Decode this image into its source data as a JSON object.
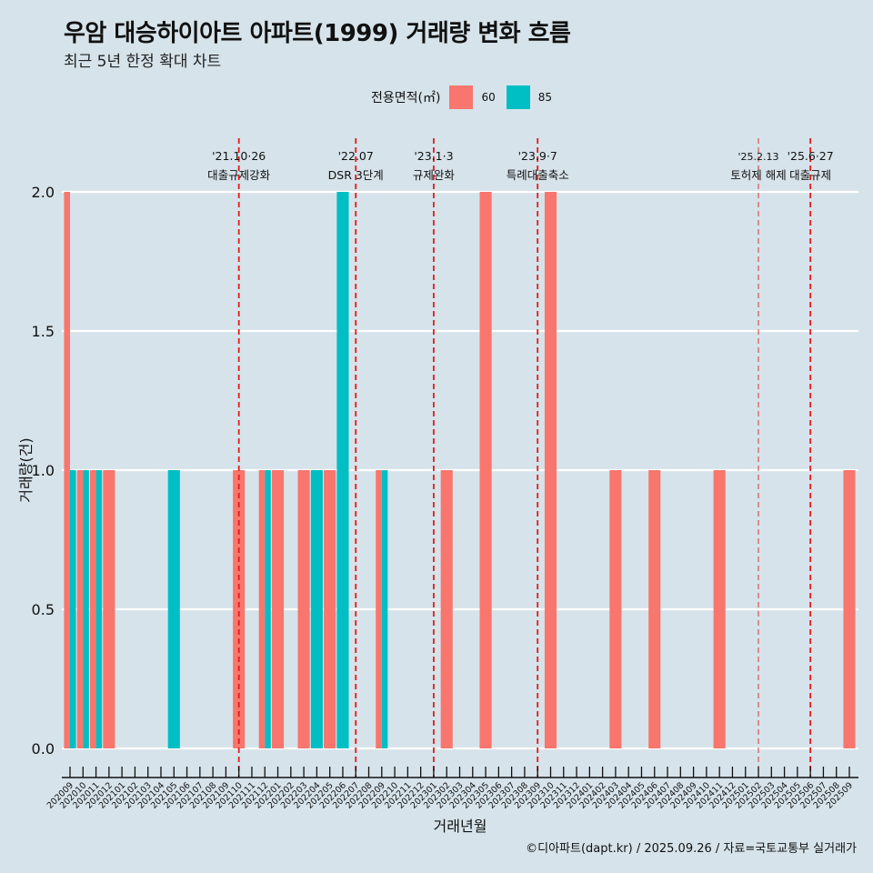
{
  "header": {
    "title": "우암 대승하이아트 아파트(1999) 거래량 변화 흐름",
    "subtitle": "최근 5년 한정 확대 차트"
  },
  "legend": {
    "title": "전용면적(㎡)",
    "items": [
      {
        "label": "60",
        "color": "#f8766d"
      },
      {
        "label": "85",
        "color": "#00bfc4"
      }
    ]
  },
  "footer": {
    "credit": "©디아파트(dapt.kr) / 2025.09.26 / 자료=국토교통부 실거래가"
  },
  "chart_data": {
    "type": "bar",
    "title": "우암 대승하이아트 아파트(1999) 거래량 변화 흐름",
    "subtitle": "최근 5년 한정 확대 차트",
    "xlabel": "거래년월",
    "ylabel": "거래량(건)",
    "ylim": [
      0,
      2
    ],
    "yticks": [
      "0.0",
      "0.5",
      "1.0",
      "1.5",
      "2.0"
    ],
    "grid": true,
    "legend_position": "top",
    "bar_mode": "dodge",
    "categories": [
      "202009",
      "202010",
      "202011",
      "202012",
      "202101",
      "202102",
      "202103",
      "202104",
      "202105",
      "202106",
      "202107",
      "202108",
      "202109",
      "202110",
      "202111",
      "202112",
      "202201",
      "202202",
      "202203",
      "202204",
      "202205",
      "202206",
      "202207",
      "202208",
      "202209",
      "202210",
      "202211",
      "202212",
      "202301",
      "202302",
      "202303",
      "202304",
      "202305",
      "202306",
      "202307",
      "202308",
      "202309",
      "202310",
      "202311",
      "202312",
      "202401",
      "202402",
      "202403",
      "202404",
      "202405",
      "202406",
      "202407",
      "202408",
      "202409",
      "202410",
      "202411",
      "202412",
      "202501",
      "202502",
      "202503",
      "202504",
      "202505",
      "202506",
      "202507",
      "202508",
      "202509"
    ],
    "series": [
      {
        "name": "60",
        "color": "#f8766d",
        "points": [
          {
            "x": "202009",
            "y": 2
          },
          {
            "x": "202010",
            "y": 1
          },
          {
            "x": "202011",
            "y": 1
          },
          {
            "x": "202012",
            "y": 1
          },
          {
            "x": "202110",
            "y": 1
          },
          {
            "x": "202112",
            "y": 1
          },
          {
            "x": "202201",
            "y": 1
          },
          {
            "x": "202203",
            "y": 1
          },
          {
            "x": "202205",
            "y": 1
          },
          {
            "x": "202209",
            "y": 1
          },
          {
            "x": "202302",
            "y": 1
          },
          {
            "x": "202305",
            "y": 2
          },
          {
            "x": "202310",
            "y": 2
          },
          {
            "x": "202403",
            "y": 1
          },
          {
            "x": "202406",
            "y": 1
          },
          {
            "x": "202411",
            "y": 1
          },
          {
            "x": "202509",
            "y": 1
          }
        ]
      },
      {
        "name": "85",
        "color": "#00bfc4",
        "points": [
          {
            "x": "202009",
            "y": 1
          },
          {
            "x": "202010",
            "y": 1
          },
          {
            "x": "202011",
            "y": 1
          },
          {
            "x": "202105",
            "y": 1
          },
          {
            "x": "202112",
            "y": 1
          },
          {
            "x": "202204",
            "y": 1
          },
          {
            "x": "202206",
            "y": 2
          },
          {
            "x": "202209",
            "y": 1
          }
        ]
      }
    ],
    "annotations": [
      {
        "x": "202110",
        "date": "'21.10·26",
        "label": "대출규제강화",
        "style": "bold"
      },
      {
        "x": "202207",
        "date": "'22.07",
        "label": "DSR 3단계",
        "style": "bold"
      },
      {
        "x": "202301",
        "date": "'23.1·3",
        "label": "규제완화",
        "style": "bold"
      },
      {
        "x": "202309",
        "date": "'23.9·7",
        "label": "특례대출축소",
        "style": "bold"
      },
      {
        "x": "202502",
        "date": "'25.2.13",
        "label": "토허제 해제",
        "style": "thin"
      },
      {
        "x": "202506",
        "date": "'25.6·27",
        "label": "대출규제",
        "style": "bold"
      }
    ],
    "annotation_color": "#e41a1c"
  }
}
